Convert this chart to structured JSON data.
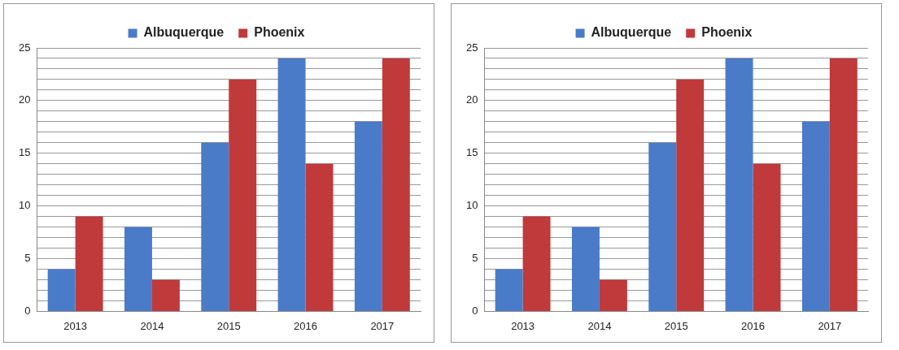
{
  "chart_data": [
    {
      "type": "bar",
      "categories": [
        "2013",
        "2014",
        "2015",
        "2016",
        "2017"
      ],
      "series": [
        {
          "name": "Albuquerque",
          "color": "#4a7bc8",
          "values": [
            4,
            8,
            16,
            24,
            18
          ]
        },
        {
          "name": "Phoenix",
          "color": "#c0393b",
          "values": [
            9,
            3,
            22,
            14,
            24
          ]
        }
      ],
      "ylim": [
        0,
        25
      ],
      "yticks": [
        0,
        {
          "value": 1,
          "label": null
        },
        {
          "value": 2,
          "label": null
        },
        {
          "value": 3,
          "label": null
        },
        {
          "value": 4,
          "label": null
        },
        5,
        {
          "value": 6,
          "label": null
        },
        {
          "value": 7,
          "label": null
        },
        {
          "value": 8,
          "label": null
        },
        {
          "value": 9,
          "label": null
        },
        10,
        {
          "value": 11,
          "label": null
        },
        {
          "value": 12,
          "label": null
        },
        {
          "value": 13,
          "label": null
        },
        {
          "value": 14,
          "label": null
        },
        15,
        {
          "value": 16,
          "label": null
        },
        {
          "value": 17,
          "label": null
        },
        {
          "value": 18,
          "label": null
        },
        {
          "value": 19,
          "label": null
        },
        20,
        {
          "value": 21,
          "label": null
        },
        {
          "value": 22,
          "label": null
        },
        {
          "value": 23,
          "label": null
        },
        {
          "value": 24,
          "label": null
        },
        25
      ],
      "grid": "y",
      "legend": "top"
    },
    {
      "type": "bar",
      "categories": [
        "2013",
        "2014",
        "2015",
        "2016",
        "2017"
      ],
      "series": [
        {
          "name": "Albuquerque",
          "color": "#4a7bc8",
          "values": [
            4,
            8,
            16,
            24,
            18
          ]
        },
        {
          "name": "Phoenix",
          "color": "#c0393b",
          "values": [
            9,
            3,
            22,
            14,
            24
          ]
        }
      ],
      "ylim": [
        0,
        25
      ],
      "yticks": [
        0,
        {
          "value": 1,
          "label": null
        },
        {
          "value": 2,
          "label": null
        },
        {
          "value": 3,
          "label": null
        },
        {
          "value": 4,
          "label": null
        },
        5,
        {
          "value": 6,
          "label": null
        },
        {
          "value": 7,
          "label": null
        },
        {
          "value": 8,
          "label": null
        },
        {
          "value": 9,
          "label": null
        },
        10,
        {
          "value": 11,
          "label": null
        },
        {
          "value": 12,
          "label": null
        },
        {
          "value": 13,
          "label": null
        },
        {
          "value": 14,
          "label": null
        },
        15,
        {
          "value": 16,
          "label": null
        },
        {
          "value": 17,
          "label": null
        },
        {
          "value": 18,
          "label": null
        },
        {
          "value": 19,
          "label": null
        },
        20,
        {
          "value": 21,
          "label": null
        },
        {
          "value": 22,
          "label": null
        },
        {
          "value": 23,
          "label": null
        },
        {
          "value": 24,
          "label": null
        },
        25
      ],
      "grid": "y",
      "legend": "top"
    }
  ]
}
